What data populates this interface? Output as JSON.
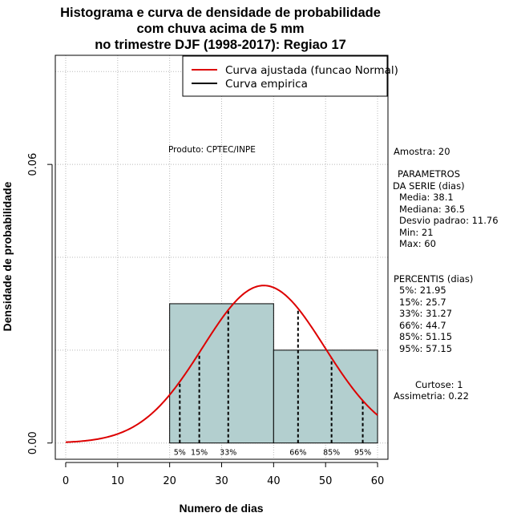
{
  "chart_data": {
    "type": "histogram",
    "title_lines": [
      "Histograma e curva de densidade de probabilidade",
      "com chuva acima de 5 mm",
      "no trimestre DJF (1998-2017): Regiao 17"
    ],
    "xlabel": "Numero de dias",
    "ylabel": "Densidade de probabilidade",
    "xlim": [
      -2,
      62
    ],
    "ylim": [
      -0.0035,
      0.0835
    ],
    "x_ticks": [
      "0",
      "10",
      "20",
      "30",
      "40",
      "50",
      "60"
    ],
    "x_tick_values": [
      0,
      10,
      20,
      30,
      40,
      50,
      60
    ],
    "y_ticks": [
      "0.00",
      "0.06"
    ],
    "y_tick_values": [
      0.0,
      0.06
    ],
    "grid": true,
    "bars": [
      {
        "x0": 20,
        "x1": 40,
        "density": 0.03
      },
      {
        "x0": 40,
        "x1": 60,
        "density": 0.02
      }
    ],
    "bar_color": "#b3cfcf",
    "fit": {
      "name": "Curva ajustada (funcao Normal)",
      "mean": 38.1,
      "sd": 11.76,
      "x_from": 0,
      "x_to": 60,
      "color": "#dd0000"
    },
    "legend": [
      {
        "label": "Curva ajustada (funcao Normal)",
        "color": "#dd0000"
      },
      {
        "label": "Curva empirica",
        "color": "#000000"
      }
    ],
    "percentile_lines": [
      {
        "label": "5%",
        "x": 21.95
      },
      {
        "label": "15%",
        "x": 25.7
      },
      {
        "label": "33%",
        "x": 31.27
      },
      {
        "label": "66%",
        "x": 44.7
      },
      {
        "label": "85%",
        "x": 51.15
      },
      {
        "label": "95%",
        "x": 57.15
      }
    ],
    "annotation": "Produto: CPTEC/INPE"
  },
  "side_panel": {
    "amostra": "Amostra: 20",
    "params_title1": "PARAMETROS",
    "params_title2": "DA SERIE (dias)",
    "media": "Media: 38.1",
    "mediana": "Mediana: 36.5",
    "desvio": "Desvio padrao: 11.76",
    "min": "Min: 21",
    "max": "Max: 60",
    "percentis_title": "PERCENTIS (dias)",
    "p5": "5%: 21.95",
    "p15": "15%: 25.7",
    "p33": "33%: 31.27",
    "p66": "66%: 44.7",
    "p85": "85%: 51.15",
    "p95": "95%: 57.15",
    "curtose": "Curtose: 1",
    "assimetria": "Assimetria: 0.22"
  }
}
